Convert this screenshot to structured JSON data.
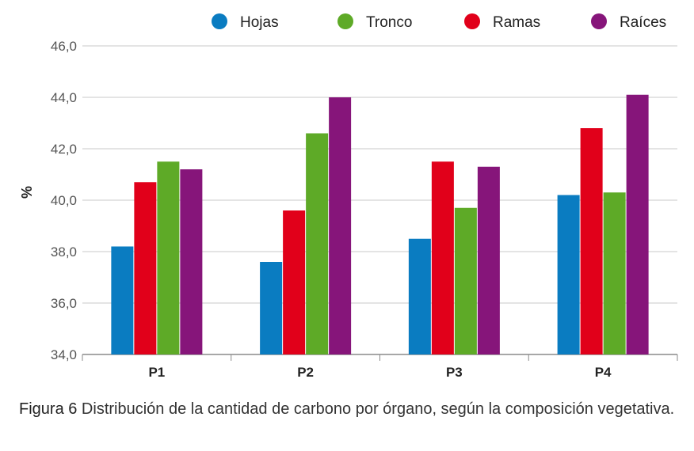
{
  "chart_data": {
    "type": "bar",
    "ylabel": "%",
    "ylim": [
      34,
      46
    ],
    "yticks": [
      "34,0",
      "36,0",
      "38,0",
      "40,0",
      "42,0",
      "44,0",
      "46,0"
    ],
    "categories": [
      "P1",
      "P2",
      "P3",
      "P4"
    ],
    "legend_position": "top",
    "grid": true,
    "series": [
      {
        "name": "Hojas",
        "color": "#0a7cc1",
        "values": [
          38.2,
          37.6,
          38.5,
          40.2
        ]
      },
      {
        "name": "Tronco",
        "color": "#5eaa27",
        "values": [
          41.5,
          42.6,
          39.7,
          40.3
        ]
      },
      {
        "name": "Ramas",
        "color": "#e1001a",
        "values": [
          40.7,
          39.6,
          41.5,
          42.8
        ]
      },
      {
        "name": "Raíces",
        "color": "#86157a",
        "values": [
          41.2,
          44.0,
          41.3,
          44.1
        ]
      }
    ],
    "bar_order_per_category": [
      [
        "Hojas",
        "Ramas",
        "Tronco",
        "Raíces"
      ],
      [
        "Hojas",
        "Ramas",
        "Tronco",
        "Raíces"
      ],
      [
        "Hojas",
        "Ramas",
        "Tronco",
        "Raíces"
      ],
      [
        "Hojas",
        "Ramas",
        "Tronco",
        "Raíces"
      ]
    ]
  },
  "caption": {
    "label": "Figura 6",
    "text": " Distribución de la cantidad de carbono por órgano, según la composición vegetativa."
  }
}
